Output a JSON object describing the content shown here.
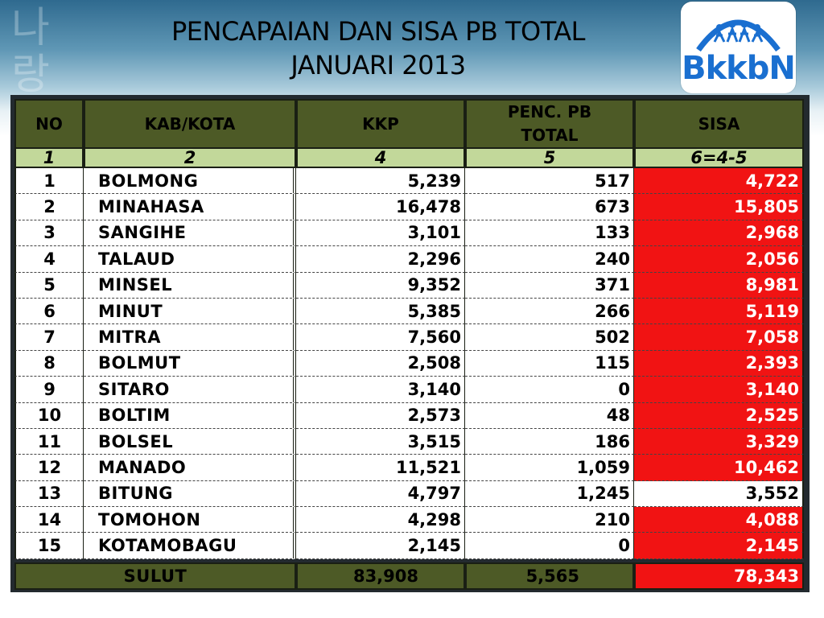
{
  "title": {
    "line1": "PENCAPAIAN DAN SISA PB TOTAL",
    "line2": "JANUARI 2013"
  },
  "logo": {
    "text": "BkkbN",
    "icon": "family-figures-icon"
  },
  "colors": {
    "header_bg": "#4d5a26",
    "index_row_bg": "#c2d89a",
    "highlight_red": "#f11313",
    "frame": "#232a2f"
  },
  "table": {
    "headers": [
      "NO",
      "KAB/KOTA",
      "KKP",
      "PENC. PB TOTAL",
      "SISA"
    ],
    "index_row": [
      "1",
      "2",
      "4",
      "5",
      "6=4-5"
    ],
    "rows": [
      {
        "no": "1",
        "kab": "BOLMONG",
        "kkp": "5,239",
        "penc": "517",
        "sisa": "4,722",
        "highlight": true
      },
      {
        "no": "2",
        "kab": "MINAHASA",
        "kkp": "16,478",
        "penc": "673",
        "sisa": "15,805",
        "highlight": true
      },
      {
        "no": "3",
        "kab": "SANGIHE",
        "kkp": "3,101",
        "penc": "133",
        "sisa": "2,968",
        "highlight": true
      },
      {
        "no": "4",
        "kab": "TALAUD",
        "kkp": "2,296",
        "penc": "240",
        "sisa": "2,056",
        "highlight": true
      },
      {
        "no": "5",
        "kab": "MINSEL",
        "kkp": "9,352",
        "penc": "371",
        "sisa": "8,981",
        "highlight": true
      },
      {
        "no": "6",
        "kab": "MINUT",
        "kkp": "5,385",
        "penc": "266",
        "sisa": "5,119",
        "highlight": true
      },
      {
        "no": "7",
        "kab": "MITRA",
        "kkp": "7,560",
        "penc": "502",
        "sisa": "7,058",
        "highlight": true
      },
      {
        "no": "8",
        "kab": "BOLMUT",
        "kkp": "2,508",
        "penc": "115",
        "sisa": "2,393",
        "highlight": true
      },
      {
        "no": "9",
        "kab": "SITARO",
        "kkp": "3,140",
        "penc": "0",
        "sisa": "3,140",
        "highlight": true
      },
      {
        "no": "10",
        "kab": "BOLTIM",
        "kkp": "2,573",
        "penc": "48",
        "sisa": "2,525",
        "highlight": true
      },
      {
        "no": "11",
        "kab": "BOLSEL",
        "kkp": "3,515",
        "penc": "186",
        "sisa": "3,329",
        "highlight": true
      },
      {
        "no": "12",
        "kab": "MANADO",
        "kkp": "11,521",
        "penc": "1,059",
        "sisa": "10,462",
        "highlight": true
      },
      {
        "no": "13",
        "kab": "BITUNG",
        "kkp": "4,797",
        "penc": "1,245",
        "sisa": "3,552",
        "highlight": false
      },
      {
        "no": "14",
        "kab": "TOMOHON",
        "kkp": "4,298",
        "penc": "210",
        "sisa": "4,088",
        "highlight": true
      },
      {
        "no": "15",
        "kab": "KOTAMOBAGU",
        "kkp": "2,145",
        "penc": "0",
        "sisa": "2,145",
        "highlight": true
      }
    ],
    "total": {
      "label": "SULUT",
      "kkp": "83,908",
      "penc": "5,565",
      "sisa": "78,343"
    }
  }
}
